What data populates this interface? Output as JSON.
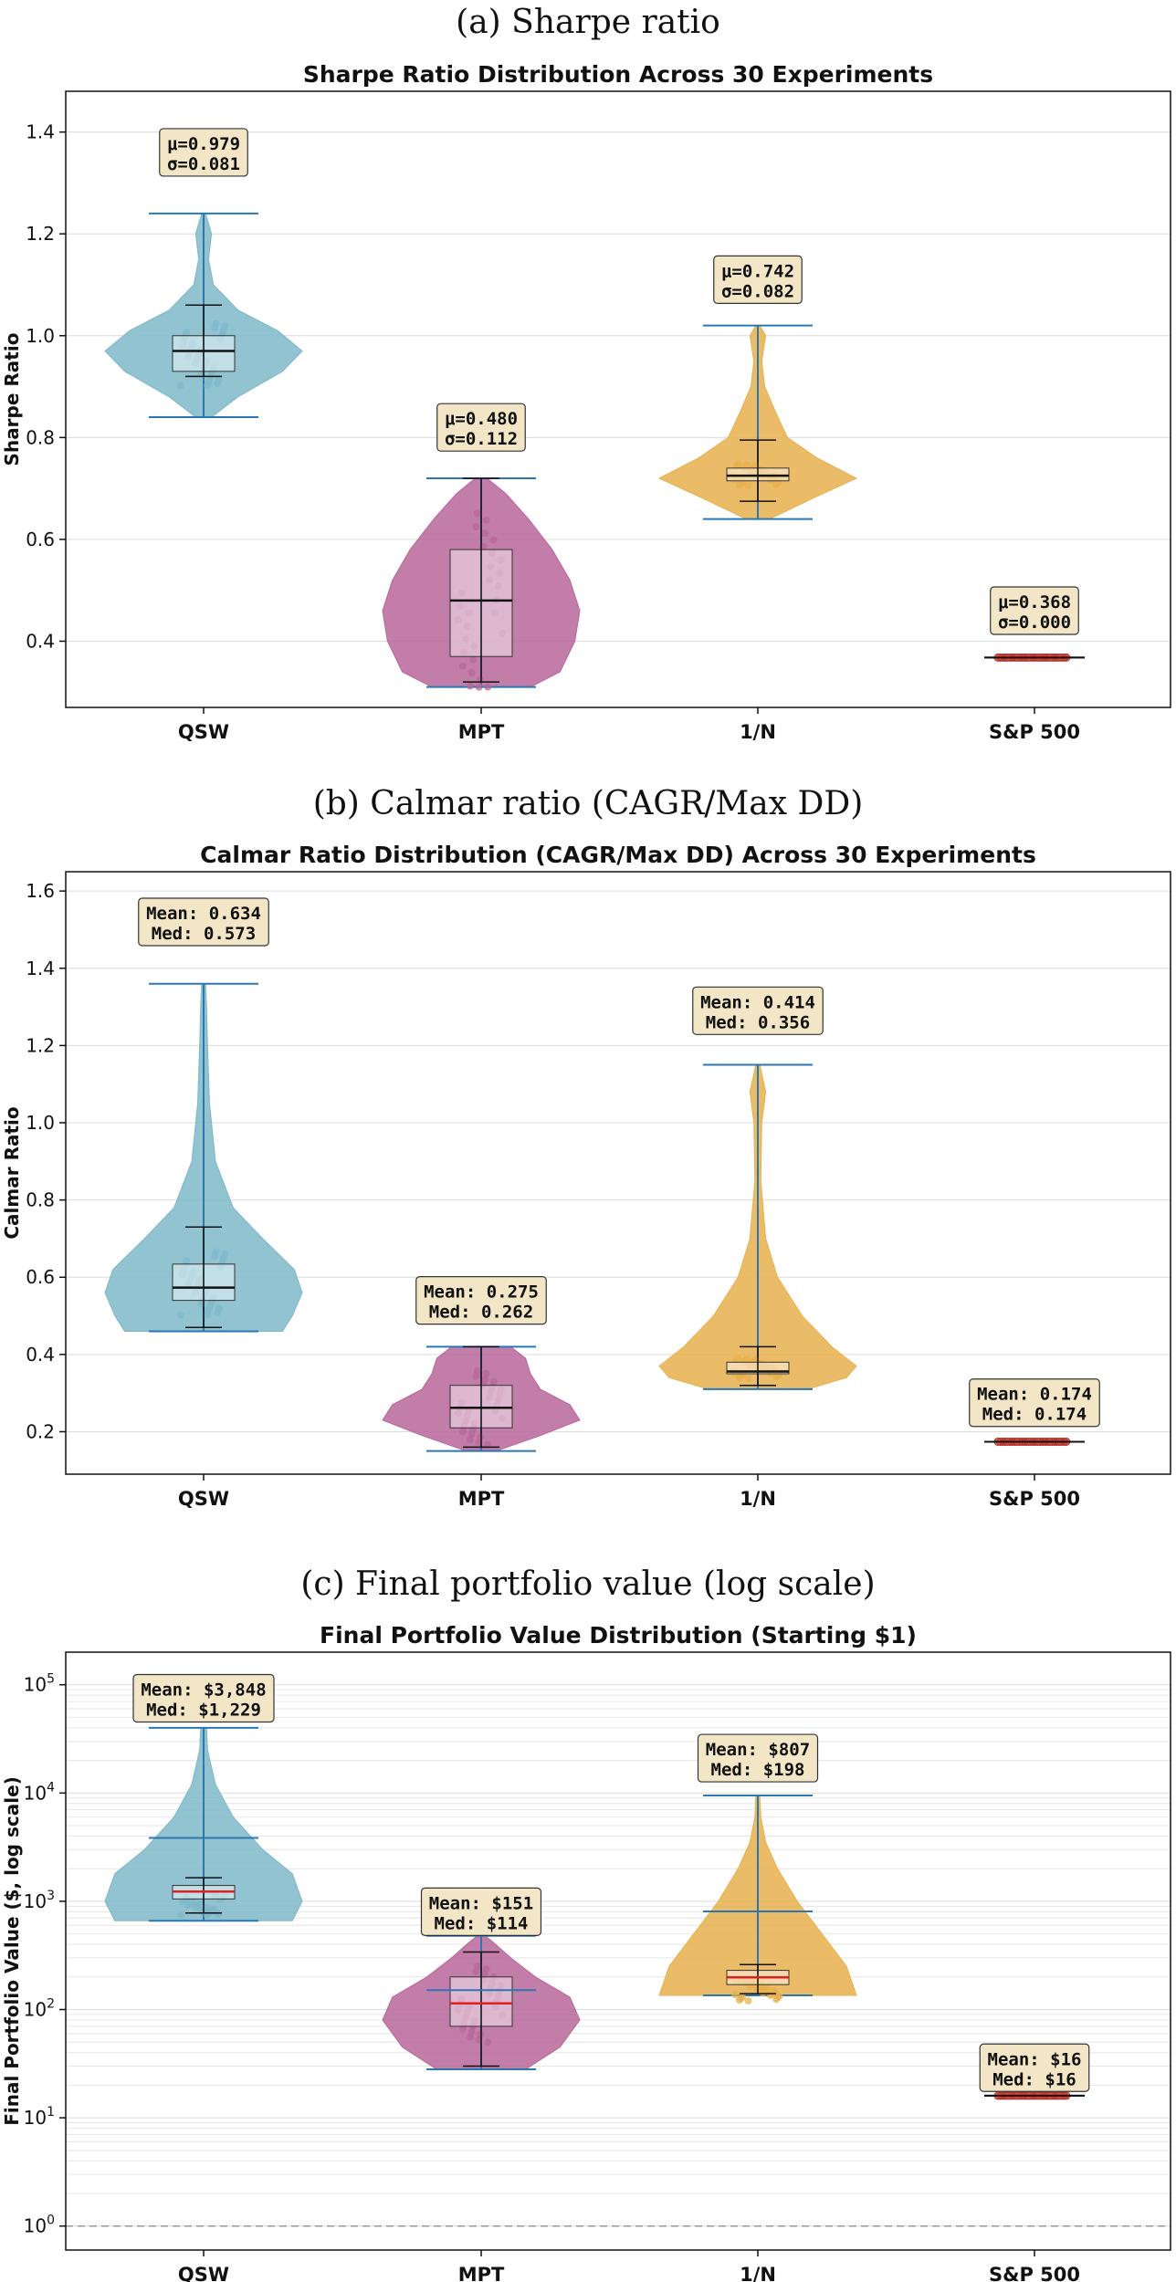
{
  "chart_data": [
    {
      "caption": "(a) Sharpe ratio",
      "type": "violin",
      "title": "Sharpe Ratio Distribution Across 30 Experiments",
      "xlabel": "",
      "ylabel": "Sharpe Ratio",
      "scale": "linear",
      "ylim": [
        0.27,
        1.48
      ],
      "yticks": [
        0.4,
        0.6,
        0.8,
        1.0,
        1.2,
        1.4
      ],
      "ytick_labels": [
        "0.4",
        "0.6",
        "0.8",
        "1.0",
        "1.2",
        "1.4"
      ],
      "grid": true,
      "categories": [
        "QSW",
        "MPT",
        "1/N",
        "S&P 500"
      ],
      "colors": [
        "#7eb8c9",
        "#b7679a",
        "#e8b04e",
        "#d9453a"
      ],
      "series": [
        {
          "name": "QSW",
          "min": 0.84,
          "max": 1.24,
          "q1": 0.93,
          "median": 0.97,
          "q3": 1.0,
          "mean": 0.979,
          "p90": 1.06,
          "p10": 0.92,
          "box_lo": 0.93,
          "box_hi": 1.0,
          "annot": [
            "μ=0.979",
            "σ=0.081"
          ],
          "annot_y": 1.36,
          "shape": [
            [
              0.84,
              0.08
            ],
            [
              0.88,
              0.35
            ],
            [
              0.93,
              0.8
            ],
            [
              0.97,
              1.0
            ],
            [
              1.01,
              0.75
            ],
            [
              1.05,
              0.35
            ],
            [
              1.1,
              0.1
            ],
            [
              1.15,
              0.05
            ],
            [
              1.2,
              0.08
            ],
            [
              1.24,
              0.02
            ]
          ]
        },
        {
          "name": "MPT",
          "min": 0.31,
          "max": 0.72,
          "q1": 0.37,
          "median": 0.48,
          "q3": 0.58,
          "mean": 0.48,
          "p90": 0.72,
          "p10": 0.32,
          "box_lo": 0.37,
          "box_hi": 0.58,
          "annot": [
            "μ=0.480",
            "σ=0.112"
          ],
          "annot_y": 0.82,
          "shape": [
            [
              0.31,
              0.5
            ],
            [
              0.34,
              0.8
            ],
            [
              0.4,
              0.95
            ],
            [
              0.46,
              1.0
            ],
            [
              0.52,
              0.9
            ],
            [
              0.58,
              0.72
            ],
            [
              0.64,
              0.48
            ],
            [
              0.69,
              0.25
            ],
            [
              0.72,
              0.06
            ]
          ]
        },
        {
          "name": "1/N",
          "min": 0.64,
          "max": 1.02,
          "q1": 0.715,
          "median": 0.725,
          "q3": 0.74,
          "mean": 0.742,
          "p90": 0.795,
          "p10": 0.675,
          "box_lo": 0.715,
          "box_hi": 0.74,
          "annot": [
            "μ=0.742",
            "σ=0.082"
          ],
          "annot_y": 1.11,
          "shape": [
            [
              0.64,
              0.12
            ],
            [
              0.68,
              0.55
            ],
            [
              0.72,
              1.0
            ],
            [
              0.76,
              0.6
            ],
            [
              0.8,
              0.3
            ],
            [
              0.85,
              0.18
            ],
            [
              0.9,
              0.07
            ],
            [
              0.95,
              0.04
            ],
            [
              1.0,
              0.08
            ],
            [
              1.02,
              0.02
            ]
          ]
        },
        {
          "name": "S&P 500",
          "min": 0.368,
          "max": 0.368,
          "q1": 0.368,
          "median": 0.368,
          "q3": 0.368,
          "mean": 0.368,
          "p90": 0.368,
          "p10": 0.368,
          "box_lo": 0.368,
          "box_hi": 0.368,
          "annot": [
            "μ=0.368",
            "σ=0.000"
          ],
          "annot_y": 0.46,
          "shape": [],
          "flat_width": 0.45
        }
      ]
    },
    {
      "caption": "(b) Calmar ratio (CAGR/Max DD)",
      "type": "violin",
      "title": "Calmar Ratio Distribution (CAGR/Max DD) Across 30 Experiments",
      "xlabel": "",
      "ylabel": "Calmar Ratio",
      "scale": "linear",
      "ylim": [
        0.09,
        1.65
      ],
      "yticks": [
        0.2,
        0.4,
        0.6,
        0.8,
        1.0,
        1.2,
        1.4,
        1.6
      ],
      "ytick_labels": [
        "0.2",
        "0.4",
        "0.6",
        "0.8",
        "1.0",
        "1.2",
        "1.4",
        "1.6"
      ],
      "grid": true,
      "categories": [
        "QSW",
        "MPT",
        "1/N",
        "S&P 500"
      ],
      "colors": [
        "#7eb8c9",
        "#b7679a",
        "#e8b04e",
        "#d9453a"
      ],
      "series": [
        {
          "name": "QSW",
          "min": 0.46,
          "max": 1.36,
          "q1": 0.54,
          "median": 0.573,
          "q3": 0.634,
          "mean": 0.634,
          "p90": 0.73,
          "p10": 0.47,
          "box_lo": 0.54,
          "box_hi": 0.634,
          "annot": [
            "Mean: 0.634",
            "Med: 0.573"
          ],
          "annot_y": 1.52,
          "shape": [
            [
              0.46,
              0.8
            ],
            [
              0.5,
              0.9
            ],
            [
              0.56,
              1.0
            ],
            [
              0.62,
              0.92
            ],
            [
              0.7,
              0.6
            ],
            [
              0.78,
              0.3
            ],
            [
              0.9,
              0.12
            ],
            [
              1.05,
              0.06
            ],
            [
              1.2,
              0.04
            ],
            [
              1.3,
              0.03
            ],
            [
              1.36,
              0.02
            ]
          ]
        },
        {
          "name": "MPT",
          "min": 0.15,
          "max": 0.42,
          "q1": 0.21,
          "median": 0.262,
          "q3": 0.32,
          "mean": 0.275,
          "p90": 0.42,
          "p10": 0.16,
          "box_lo": 0.21,
          "box_hi": 0.32,
          "annot": [
            "Mean: 0.275",
            "Med: 0.262"
          ],
          "annot_y": 0.54,
          "shape": [
            [
              0.15,
              0.15
            ],
            [
              0.19,
              0.6
            ],
            [
              0.23,
              1.0
            ],
            [
              0.27,
              0.9
            ],
            [
              0.31,
              0.6
            ],
            [
              0.35,
              0.5
            ],
            [
              0.39,
              0.45
            ],
            [
              0.42,
              0.3
            ]
          ]
        },
        {
          "name": "1/N",
          "min": 0.31,
          "max": 1.15,
          "q1": 0.35,
          "median": 0.356,
          "q3": 0.38,
          "mean": 0.414,
          "p90": 0.42,
          "p10": 0.32,
          "box_lo": 0.35,
          "box_hi": 0.38,
          "annot": [
            "Mean: 0.414",
            "Med: 0.356"
          ],
          "annot_y": 1.29,
          "shape": [
            [
              0.31,
              0.5
            ],
            [
              0.34,
              0.9
            ],
            [
              0.37,
              1.0
            ],
            [
              0.42,
              0.75
            ],
            [
              0.5,
              0.45
            ],
            [
              0.6,
              0.2
            ],
            [
              0.7,
              0.08
            ],
            [
              0.85,
              0.03
            ],
            [
              1.0,
              0.04
            ],
            [
              1.08,
              0.08
            ],
            [
              1.15,
              0.02
            ]
          ]
        },
        {
          "name": "S&P 500",
          "min": 0.174,
          "max": 0.174,
          "q1": 0.174,
          "median": 0.174,
          "q3": 0.174,
          "mean": 0.174,
          "p90": 0.174,
          "p10": 0.174,
          "box_lo": 0.174,
          "box_hi": 0.174,
          "annot": [
            "Mean: 0.174",
            "Med: 0.174"
          ],
          "annot_y": 0.275,
          "shape": [],
          "flat_width": 0.45
        }
      ]
    },
    {
      "caption": "(c) Final portfolio value (log scale)",
      "type": "violin",
      "title": "Final Portfolio Value Distribution (Starting $1)",
      "xlabel": "",
      "ylabel": "Final Portfolio Value ($, log scale)",
      "scale": "log",
      "ylim": [
        0.6,
        200000
      ],
      "yticks": [
        1,
        10,
        100,
        1000,
        10000,
        100000
      ],
      "ytick_labels": [
        "10^0",
        "10^1",
        "10^2",
        "10^3",
        "10^4",
        "10^5"
      ],
      "grid": true,
      "reference_line": 1,
      "categories": [
        "QSW",
        "MPT",
        "1/N",
        "S&P 500"
      ],
      "colors": [
        "#7eb8c9",
        "#b7679a",
        "#e8b04e",
        "#d9453a"
      ],
      "series": [
        {
          "name": "QSW",
          "min": 660,
          "max": 40000,
          "q1": 1050,
          "median": 1229,
          "q3": 1400,
          "mean": 3848,
          "p90": 1650,
          "p10": 780,
          "box_lo": 1050,
          "box_hi": 1400,
          "extra_lines": [
            3848
          ],
          "annot": [
            "Mean: $3,848",
            "Med: $1,229"
          ],
          "annot_y": 75000,
          "shape": [
            [
              660,
              0.9
            ],
            [
              1000,
              1.0
            ],
            [
              1800,
              0.9
            ],
            [
              3000,
              0.6
            ],
            [
              6000,
              0.3
            ],
            [
              12000,
              0.12
            ],
            [
              25000,
              0.04
            ],
            [
              40000,
              0.03
            ]
          ]
        },
        {
          "name": "MPT",
          "min": 28,
          "max": 480,
          "q1": 70,
          "median": 114,
          "q3": 200,
          "mean": 151,
          "p90": 340,
          "p10": 30,
          "box_lo": 70,
          "box_hi": 200,
          "extra_lines": [
            151
          ],
          "annot": [
            "Mean: $151",
            "Med: $114"
          ],
          "annot_y": 800,
          "shape": [
            [
              28,
              0.45
            ],
            [
              45,
              0.8
            ],
            [
              80,
              1.0
            ],
            [
              130,
              0.9
            ],
            [
              200,
              0.55
            ],
            [
              300,
              0.3
            ],
            [
              420,
              0.12
            ],
            [
              480,
              0.04
            ]
          ]
        },
        {
          "name": "1/N",
          "min": 135,
          "max": 9500,
          "q1": 170,
          "median": 198,
          "q3": 230,
          "mean": 807,
          "p90": 260,
          "p10": 140,
          "box_lo": 170,
          "box_hi": 230,
          "extra_lines": [
            807
          ],
          "annot": [
            "Mean: $807",
            "Med: $198"
          ],
          "annot_y": 21000,
          "shape": [
            [
              135,
              1.0
            ],
            [
              250,
              0.9
            ],
            [
              500,
              0.65
            ],
            [
              1000,
              0.4
            ],
            [
              2000,
              0.2
            ],
            [
              3500,
              0.08
            ],
            [
              6000,
              0.03
            ],
            [
              9500,
              0.02
            ]
          ]
        },
        {
          "name": "S&P 500",
          "min": 16,
          "max": 16,
          "q1": 16,
          "median": 16,
          "q3": 16,
          "mean": 16,
          "p90": 16,
          "p10": 16,
          "box_lo": 16,
          "box_hi": 16,
          "extra_lines": [],
          "annot": [
            "Mean: $16",
            "Med: $16"
          ],
          "annot_y": 29,
          "shape": [],
          "flat_width": 0.45
        }
      ]
    }
  ]
}
